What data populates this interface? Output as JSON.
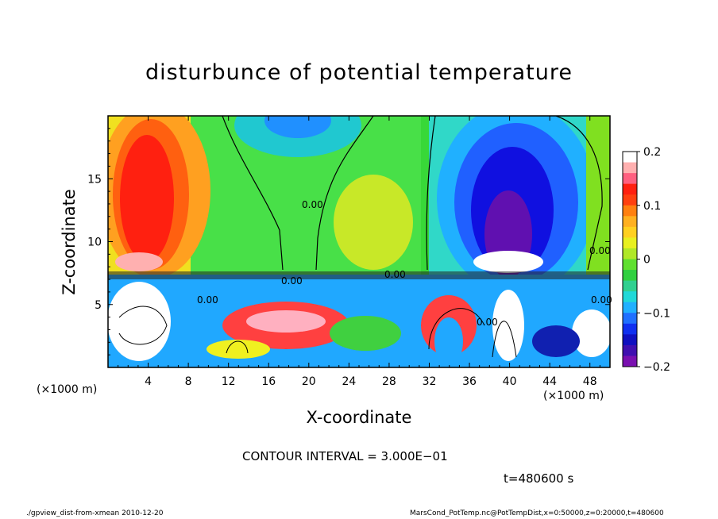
{
  "chart_data": {
    "type": "heatmap",
    "title": "disturbunce of potential temperature",
    "xlabel": "X-coordinate",
    "ylabel": "Z-coordinate",
    "x_unit_label": "(×1000 m)",
    "x_ticks": [
      4,
      8,
      12,
      16,
      20,
      24,
      28,
      32,
      36,
      40,
      44,
      48
    ],
    "y_ticks": [
      5,
      10,
      15
    ],
    "xlim": [
      0,
      50
    ],
    "ylim": [
      0,
      20
    ],
    "colorbar": {
      "range": [
        -0.2,
        0.2
      ],
      "tick_values": [
        0.2,
        0.1,
        0,
        -0.1,
        -0.2
      ],
      "tick_labels": [
        "0.2",
        "0.1",
        "0",
        "−0.1",
        "−0.2"
      ]
    },
    "contour_labels": [
      "0.00",
      "0.00",
      "0.00",
      "0.00",
      "0.00",
      "0.00",
      "0.00"
    ],
    "contour_interval_text": "CONTOUR INTERVAL = 3.000E−01",
    "time_text": "t=480600 s",
    "colors": {
      "positive_max": "#ff0000",
      "zero": "#22e022",
      "negative_max": "#7a10b0"
    }
  },
  "footer": {
    "left": "./gpview_dist-from-xmean  2010-12-20",
    "right": "MarsCond_PotTemp.nc@PotTempDist,x=0:50000,z=0:20000,t=480600"
  }
}
